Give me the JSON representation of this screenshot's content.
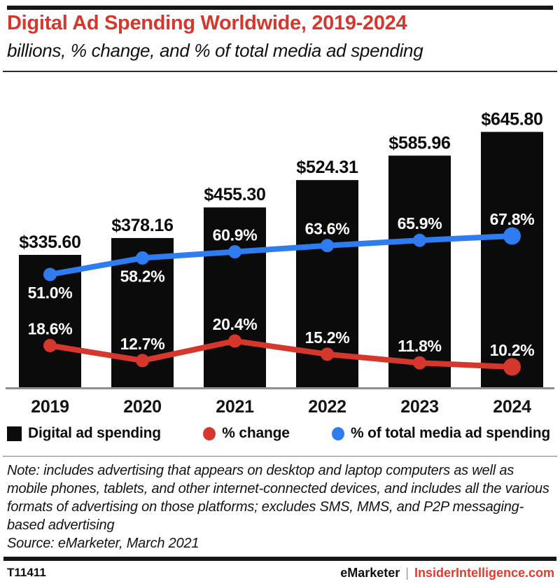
{
  "title": "Digital Ad Spending Worldwide, 2019-2024",
  "subtitle": "billions, % change, and % of total media ad spending",
  "colors": {
    "accent_red": "#d6372c",
    "line_red": "#d6372c",
    "line_blue": "#2e7cf0",
    "bar_black": "#0b0b0b",
    "axis_gray": "#8f8f8f",
    "label_white": "#ffffff",
    "footer_red": "#e23a2e"
  },
  "chart_data": {
    "type": "bar",
    "subtype": "combo bar + two lines with point labels, no gridlines, no visible y-axis",
    "categories": [
      "2019",
      "2020",
      "2021",
      "2022",
      "2023",
      "2024"
    ],
    "series": [
      {
        "name": "Digital ad spending",
        "kind": "bar",
        "unit": "US$ billions",
        "values": [
          335.6,
          378.16,
          455.3,
          524.31,
          585.96,
          645.8
        ],
        "labels": [
          "$335.60",
          "$378.16",
          "$455.30",
          "$524.31",
          "$585.96",
          "$645.80"
        ]
      },
      {
        "name": "% change",
        "kind": "line",
        "unit": "%",
        "values": [
          18.6,
          12.7,
          20.4,
          15.2,
          11.8,
          10.2
        ],
        "labels": [
          "18.6%",
          "12.7%",
          "20.4%",
          "15.2%",
          "11.8%",
          "10.2%"
        ],
        "label_positions": [
          "above",
          "above",
          "above",
          "above",
          "above",
          "above"
        ]
      },
      {
        "name": "% of total media ad spending",
        "kind": "line",
        "unit": "%",
        "values": [
          51.0,
          58.2,
          60.9,
          63.6,
          65.9,
          67.8
        ],
        "labels": [
          "51.0%",
          "58.2%",
          "60.9%",
          "63.6%",
          "65.9%",
          "67.8%"
        ],
        "label_positions": [
          "below",
          "below",
          "above",
          "above",
          "above",
          "above"
        ]
      }
    ],
    "value_labels_shown": true,
    "legend_position": "bottom",
    "grid": false
  },
  "legend": [
    {
      "label": "Digital ad spending",
      "marker": "black-square"
    },
    {
      "label": "% change",
      "marker": "red-circle"
    },
    {
      "label": "% of total media ad spending",
      "marker": "blue-circle"
    }
  ],
  "note": "Note: includes advertising that appears on desktop and laptop computers as well as mobile phones, tablets, and other internet-connected devices, and includes all the various formats of advertising on those platforms; excludes SMS, MMS, and P2P messaging-based advertising",
  "source": "Source: eMarketer, March 2021",
  "footer": {
    "id": "T11411",
    "brand": "eMarketer",
    "divider": "|",
    "site": "InsiderIntelligence.com"
  }
}
